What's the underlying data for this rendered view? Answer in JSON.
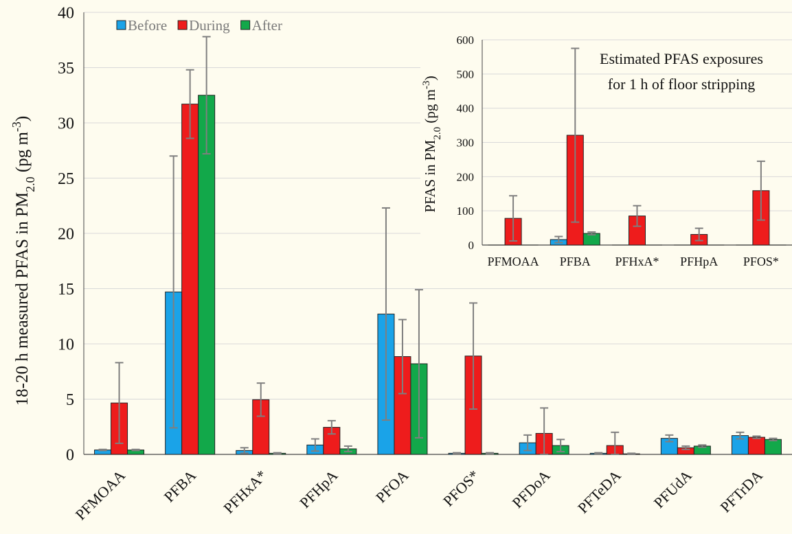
{
  "colors": {
    "before": "#1aa3e8",
    "during": "#ee1c1c",
    "after": "#12a84a",
    "background": "#fefcef",
    "errorbar": "#7f7f7f"
  },
  "chart_data": [
    {
      "type": "bar",
      "ylabel_main": "18-20 h measured PFAS in PM",
      "ylabel_sub": "2.0",
      "ylabel_unit": "(pg m",
      "ylabel_exp": "-3",
      "ylabel_close": ")",
      "ylim": [
        0,
        40
      ],
      "yticks": [
        0,
        5,
        10,
        15,
        20,
        25,
        30,
        35,
        40
      ],
      "legend": "top-left",
      "categories": [
        "PFMOAA",
        "PFBA",
        "PFHxA*",
        "PFHpA",
        "PFOA",
        "PFOS*",
        "PFDoA",
        "PFTeDA",
        "PFUdA",
        "PFTrDA"
      ],
      "series": [
        {
          "name": "Before",
          "color_key": "before",
          "values": [
            0.4,
            14.7,
            0.35,
            0.85,
            12.7,
            0.1,
            1.05,
            0.1,
            1.45,
            1.7
          ],
          "errors": [
            0.05,
            12.3,
            0.25,
            0.55,
            9.6,
            0.05,
            0.7,
            0.05,
            0.3,
            0.3
          ]
        },
        {
          "name": "During",
          "color_key": "during",
          "values": [
            4.65,
            31.7,
            4.95,
            2.45,
            8.85,
            8.9,
            1.9,
            0.8,
            0.6,
            1.55
          ],
          "errors": [
            3.65,
            3.1,
            1.5,
            0.6,
            3.35,
            4.8,
            2.3,
            1.2,
            0.15,
            0.1
          ]
        },
        {
          "name": "After",
          "color_key": "after",
          "values": [
            0.4,
            32.5,
            0.1,
            0.5,
            8.2,
            0.1,
            0.8,
            0.05,
            0.75,
            1.35
          ],
          "errors": [
            0.05,
            5.3,
            0.05,
            0.25,
            6.7,
            0.05,
            0.55,
            0.05,
            0.1,
            0.1
          ]
        }
      ]
    },
    {
      "type": "bar",
      "title_line1": "Estimated PFAS exposures",
      "title_line2": "for 1 h of floor stripping",
      "ylabel_main": "PFAS in PM",
      "ylabel_sub": "2.0",
      "ylabel_unit": "(pg m",
      "ylabel_exp": "-3",
      "ylabel_close": ")",
      "ylim": [
        0,
        600
      ],
      "yticks": [
        0,
        100,
        200,
        300,
        400,
        500,
        600
      ],
      "categories": [
        "PFMOAA",
        "PFBA",
        "PFHxA*",
        "PFHpA",
        "PFOS*"
      ],
      "series": [
        {
          "name": "Before",
          "color_key": "before",
          "values": [
            0,
            16,
            0,
            0,
            0
          ],
          "errors": [
            0,
            9,
            0,
            0,
            0
          ]
        },
        {
          "name": "During",
          "color_key": "during",
          "values": [
            78,
            321,
            85,
            31,
            159
          ],
          "errors": [
            66,
            254,
            30,
            18,
            86
          ]
        },
        {
          "name": "After",
          "color_key": "after",
          "values": [
            0,
            34,
            0,
            0,
            0
          ],
          "errors": [
            0,
            4,
            0,
            0,
            0
          ]
        }
      ]
    }
  ]
}
